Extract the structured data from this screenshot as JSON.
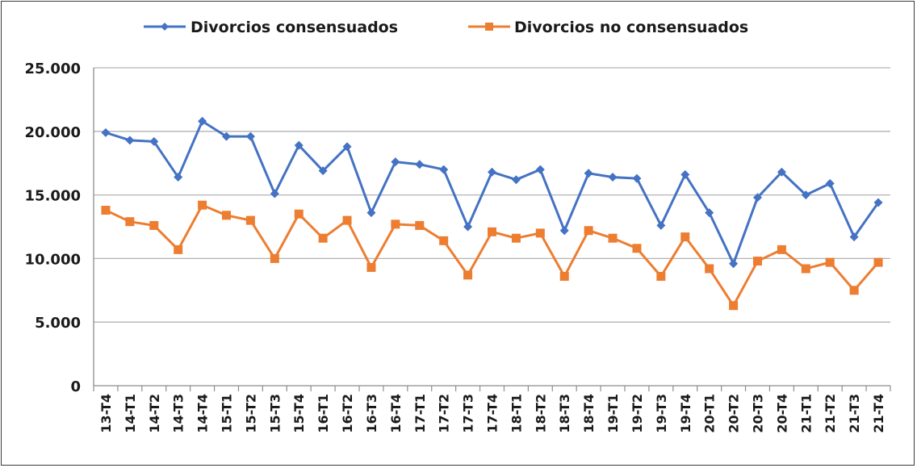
{
  "chart_data": {
    "type": "line",
    "title": "",
    "xlabel": "",
    "ylabel": "",
    "ylim": [
      0,
      25000
    ],
    "yticks": [
      0,
      5000,
      10000,
      15000,
      20000,
      25000
    ],
    "ytick_labels": [
      "0",
      "5.000",
      "10.000",
      "15.000",
      "20.000",
      "25.000"
    ],
    "grid": true,
    "legend_position": "top",
    "categories": [
      "13-T4",
      "14-T1",
      "14-T2",
      "14-T3",
      "14-T4",
      "15-T1",
      "15-T2",
      "15-T3",
      "15-T4",
      "16-T1",
      "16-T2",
      "16-T3",
      "16-T4",
      "17-T1",
      "17-T2",
      "17-T3",
      "17-T4",
      "18-T1",
      "18-T2",
      "18-T3",
      "18-T4",
      "19-T1",
      "19-T2",
      "19-T3",
      "19-T4",
      "20-T1",
      "20-T2",
      "20-T3",
      "20-T4",
      "21-T1",
      "21-T2",
      "21-T3",
      "21-T4"
    ],
    "series": [
      {
        "name": "Divorcios consensuados",
        "color": "#4472C4",
        "marker": "diamond",
        "values": [
          19900,
          19300,
          19200,
          16400,
          20800,
          19600,
          19600,
          15100,
          18900,
          16900,
          18800,
          13600,
          17600,
          17400,
          17000,
          12500,
          16800,
          16200,
          17000,
          12200,
          16700,
          16400,
          16300,
          12600,
          16600,
          13600,
          9600,
          14800,
          16800,
          15000,
          15900,
          11700,
          14400
        ]
      },
      {
        "name": "Divorcios no consensuados",
        "color": "#ED7D31",
        "marker": "square",
        "values": [
          13800,
          12900,
          12600,
          10700,
          14200,
          13400,
          13000,
          10000,
          13500,
          11600,
          13000,
          9300,
          12700,
          12600,
          11400,
          8700,
          12100,
          11600,
          12000,
          8600,
          12200,
          11600,
          10800,
          8600,
          11700,
          9200,
          6300,
          9800,
          10700,
          9200,
          9700,
          7500,
          9700
        ]
      }
    ]
  }
}
